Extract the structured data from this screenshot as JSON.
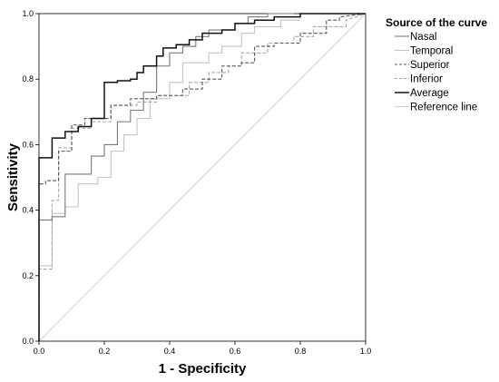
{
  "chart_data": {
    "type": "line",
    "title": "",
    "xlabel": "1 - Specificity",
    "ylabel": "Sensitivity",
    "xlim": [
      0,
      1
    ],
    "ylim": [
      0,
      1
    ],
    "xticks": [
      "0.0",
      "0.2",
      "0.4",
      "0.6",
      "0.8",
      "1.0"
    ],
    "yticks": [
      "0.0",
      "0.2",
      "0.4",
      "0.6",
      "0.8",
      "1.0"
    ],
    "grid": false,
    "legend": {
      "title": "Source of the curve",
      "placement": "right"
    },
    "series": [
      {
        "name": "Nasal",
        "color": "#7a7a7a",
        "dash": "solid",
        "x": [
          0,
          0,
          0.04,
          0.04,
          0.08,
          0.08,
          0.16,
          0.16,
          0.2,
          0.2,
          0.24,
          0.24,
          0.28,
          0.28,
          0.32,
          0.32,
          0.36,
          0.36,
          0.4,
          0.4,
          0.44,
          0.44,
          0.48,
          0.48,
          0.52,
          0.52,
          0.6,
          0.6,
          0.64,
          0.64,
          0.7,
          0.7,
          0.78
        ],
        "y": [
          0,
          0.37,
          0.37,
          0.38,
          0.38,
          0.51,
          0.51,
          0.565,
          0.565,
          0.6,
          0.6,
          0.67,
          0.67,
          0.705,
          0.705,
          0.76,
          0.76,
          0.84,
          0.84,
          0.88,
          0.88,
          0.9,
          0.9,
          0.93,
          0.93,
          0.95,
          0.95,
          0.97,
          0.97,
          0.99,
          0.99,
          1.0,
          1.0
        ]
      },
      {
        "name": "Temporal",
        "color": "#c4c4c4",
        "dash": "solid",
        "x": [
          0,
          0,
          0.04,
          0.04,
          0.08,
          0.08,
          0.12,
          0.12,
          0.18,
          0.18,
          0.22,
          0.22,
          0.26,
          0.26,
          0.3,
          0.3,
          0.34,
          0.34,
          0.4,
          0.4,
          0.44,
          0.44,
          0.52,
          0.52,
          0.56,
          0.56,
          0.62,
          0.62,
          0.66,
          0.66,
          0.74,
          0.74,
          0.8
        ],
        "y": [
          0,
          0.23,
          0.23,
          0.39,
          0.39,
          0.41,
          0.41,
          0.48,
          0.48,
          0.5,
          0.5,
          0.58,
          0.58,
          0.63,
          0.63,
          0.68,
          0.68,
          0.74,
          0.74,
          0.79,
          0.79,
          0.85,
          0.85,
          0.88,
          0.88,
          0.9,
          0.9,
          0.94,
          0.94,
          0.96,
          0.96,
          0.98,
          0.98
        ]
      },
      {
        "name": "Superior",
        "color": "#555555",
        "dash": "dashed",
        "x": [
          0,
          0,
          0.02,
          0.02,
          0.06,
          0.06,
          0.1,
          0.1,
          0.14,
          0.14,
          0.22,
          0.22,
          0.28,
          0.28,
          0.36,
          0.36,
          0.44,
          0.44,
          0.5,
          0.5,
          0.56,
          0.56,
          0.62,
          0.62,
          0.66,
          0.66,
          0.72,
          0.72,
          0.8,
          0.8,
          0.88,
          0.88,
          0.92,
          0.92,
          1.0
        ],
        "y": [
          0,
          0.48,
          0.48,
          0.49,
          0.49,
          0.58,
          0.58,
          0.66,
          0.66,
          0.68,
          0.68,
          0.72,
          0.72,
          0.74,
          0.74,
          0.75,
          0.75,
          0.77,
          0.77,
          0.8,
          0.8,
          0.84,
          0.84,
          0.85,
          0.85,
          0.9,
          0.9,
          0.91,
          0.91,
          0.94,
          0.94,
          0.98,
          0.98,
          0.99,
          1.0
        ]
      },
      {
        "name": "Inferior",
        "color": "#a8a8a8",
        "dash": "dashed",
        "x": [
          0,
          0,
          0.04,
          0.04,
          0.06,
          0.06,
          0.1,
          0.1,
          0.16,
          0.16,
          0.22,
          0.22,
          0.3,
          0.3,
          0.36,
          0.36,
          0.46,
          0.46,
          0.52,
          0.52,
          0.58,
          0.58,
          0.62,
          0.62,
          0.7,
          0.7,
          0.78,
          0.78,
          0.84,
          0.84,
          0.94,
          0.94,
          1.0
        ],
        "y": [
          0,
          0.22,
          0.22,
          0.43,
          0.43,
          0.59,
          0.59,
          0.65,
          0.65,
          0.67,
          0.67,
          0.72,
          0.72,
          0.73,
          0.73,
          0.75,
          0.75,
          0.79,
          0.79,
          0.82,
          0.82,
          0.84,
          0.84,
          0.88,
          0.88,
          0.91,
          0.91,
          0.93,
          0.93,
          0.96,
          0.96,
          0.98,
          1.0
        ]
      },
      {
        "name": "Average",
        "color": "#111111",
        "dash": "solid",
        "x": [
          0,
          0,
          0.04,
          0.04,
          0.08,
          0.08,
          0.12,
          0.12,
          0.16,
          0.16,
          0.2,
          0.2,
          0.24,
          0.24,
          0.28,
          0.28,
          0.3,
          0.3,
          0.32,
          0.32,
          0.36,
          0.36,
          0.38,
          0.38,
          0.42,
          0.42,
          0.46,
          0.46,
          0.5,
          0.5,
          0.56,
          0.56,
          0.6,
          0.6,
          0.66,
          0.66,
          0.72,
          0.72,
          0.8,
          0.8,
          1.0
        ],
        "y": [
          0,
          0.56,
          0.56,
          0.62,
          0.62,
          0.64,
          0.64,
          0.655,
          0.655,
          0.68,
          0.68,
          0.79,
          0.79,
          0.795,
          0.795,
          0.8,
          0.8,
          0.82,
          0.82,
          0.84,
          0.84,
          0.87,
          0.87,
          0.895,
          0.895,
          0.905,
          0.905,
          0.92,
          0.92,
          0.94,
          0.94,
          0.95,
          0.95,
          0.97,
          0.97,
          0.98,
          0.98,
          0.99,
          0.99,
          1.0,
          1.0
        ]
      },
      {
        "name": "Reference line",
        "color": "#d2d2d2",
        "dash": "solid",
        "x": [
          0,
          1
        ],
        "y": [
          0,
          1
        ]
      }
    ]
  }
}
